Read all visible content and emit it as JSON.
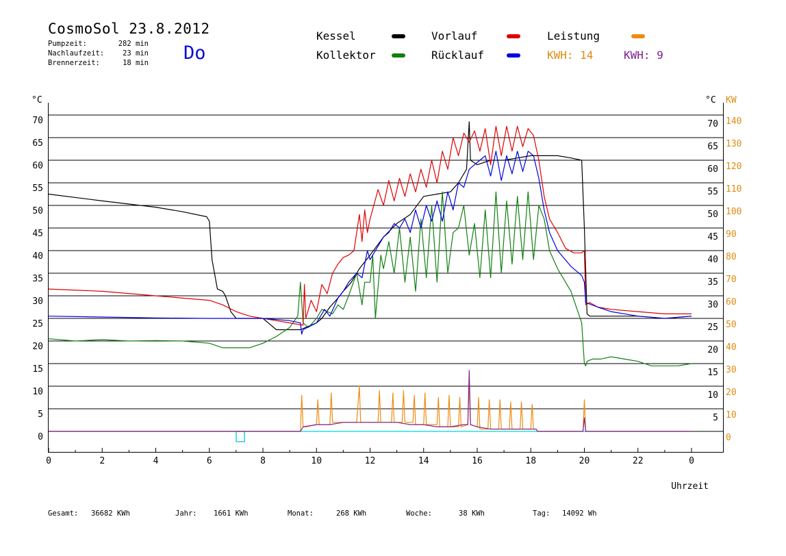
{
  "header": {
    "title": "CosmoSol 23.8.2012",
    "weekday": "Do",
    "stats": [
      {
        "label": "Pumpzeit:",
        "value": "282 min"
      },
      {
        "label": "Nachlaufzeit:",
        "value": "23 min"
      },
      {
        "label": "Brennerzeit:",
        "value": "18 min"
      }
    ]
  },
  "legend": {
    "kessel": {
      "label": "Kessel",
      "color": "#000000"
    },
    "vorlauf": {
      "label": "Vorlauf",
      "color": "#e00000"
    },
    "leistung": {
      "label": "Leistung",
      "color": "#f08a10"
    },
    "kollektor": {
      "label": "Kollektor",
      "color": "#108010"
    },
    "ruecklauf": {
      "label": "Rücklauf",
      "color": "#0000e0"
    },
    "kwh1": {
      "label": "KWH: 14",
      "color": "#e08a10"
    },
    "kwh2": {
      "label": "KWH: 9",
      "color": "#80208a"
    }
  },
  "footer": [
    {
      "label": "Gesamt:",
      "value": "36682 KWh"
    },
    {
      "label": "Jahr:",
      "value": "1661 KWh"
    },
    {
      "label": "Monat:",
      "value": "268 KWh"
    },
    {
      "label": "Woche:",
      "value": "38 KWh"
    },
    {
      "label": "Tag:",
      "value": "14092 Wh"
    }
  ],
  "chart_data": {
    "type": "line",
    "xlabel": "Uhrzeit",
    "left_unit": "°C",
    "right_units": [
      "°C",
      "KW"
    ],
    "x_range": [
      0,
      24
    ],
    "x_ticks": [
      "0",
      "2",
      "4",
      "6",
      "8",
      "10",
      "12",
      "14",
      "16",
      "18",
      "20",
      "22",
      "0"
    ],
    "y_range": [
      0,
      70
    ],
    "y_ticks_left": [
      "70",
      "65",
      "60",
      "55",
      "50",
      "45",
      "40",
      "35",
      "30",
      "25",
      "20",
      "15",
      "10",
      "5",
      "0"
    ],
    "y_ticks_right_temp": [
      "70",
      "65",
      "60",
      "55",
      "50",
      "45",
      "40",
      "35",
      "30",
      "25",
      "20",
      "15",
      "10",
      "5"
    ],
    "y_ticks_right_kw": [
      "140",
      "130",
      "120",
      "110",
      "100",
      "90",
      "80",
      "70",
      "60",
      "50",
      "40",
      "30",
      "20",
      "10",
      "0"
    ],
    "grid": true,
    "series": [
      {
        "name": "Kessel",
        "color": "#000000",
        "x": [
          0,
          2,
          4,
          5,
          5.9,
          6.0,
          6.1,
          6.3,
          6.5,
          6.6,
          6.8,
          7.0,
          7.5,
          8.0,
          8.2,
          8.5,
          9.0,
          9.4,
          9.6,
          10.0,
          10.2,
          10.5,
          10.8,
          11.0,
          11.3,
          11.6,
          12.0,
          12.5,
          13.0,
          13.5,
          14.0,
          14.5,
          15.0,
          15.3,
          15.6,
          15.7,
          15.75,
          16.0,
          16.5,
          17.0,
          17.5,
          18.0,
          18.2,
          18.5,
          19.0,
          19.5,
          19.9,
          20.0,
          20.1,
          20.2,
          20.5,
          21.0,
          22.0,
          23.0,
          24.0
        ],
        "y": [
          52.5,
          51.0,
          49.6,
          48.6,
          47.5,
          46.5,
          38,
          31.5,
          31.0,
          30.0,
          26.5,
          25.0,
          25.0,
          25.0,
          24.0,
          22.5,
          22.5,
          22.5,
          23.0,
          24.0,
          25.0,
          27.5,
          29.5,
          31.0,
          33.0,
          36.0,
          39.0,
          43.0,
          46.0,
          48.0,
          52.0,
          52.5,
          53.0,
          55.0,
          58.0,
          68.5,
          60.0,
          59.0,
          60.0,
          60.0,
          60.5,
          61.0,
          61.0,
          61.0,
          61.0,
          60.5,
          60.0,
          45.0,
          26.0,
          25.5,
          25.5,
          25.5,
          25.5,
          25.0,
          25.5
        ]
      },
      {
        "name": "Vorlauf",
        "color": "#e00000",
        "x": [
          0,
          2,
          4,
          6,
          6.5,
          7.0,
          7.5,
          8.0,
          8.5,
          9.0,
          9.5,
          9.55,
          9.6,
          9.8,
          10.0,
          10.2,
          10.4,
          10.6,
          10.8,
          11.0,
          11.2,
          11.4,
          11.6,
          11.7,
          11.8,
          11.9,
          12.0,
          12.3,
          12.5,
          12.7,
          12.9,
          13.1,
          13.3,
          13.5,
          13.7,
          13.9,
          14.1,
          14.3,
          14.5,
          14.7,
          14.9,
          15.1,
          15.3,
          15.5,
          15.7,
          15.9,
          16.1,
          16.3,
          16.5,
          16.7,
          16.9,
          17.1,
          17.3,
          17.5,
          17.7,
          17.9,
          18.1,
          18.3,
          18.5,
          18.7,
          19.0,
          19.3,
          19.6,
          19.9,
          20.0,
          20.05,
          20.2,
          20.5,
          21.0,
          22.0,
          23.0,
          24.0
        ],
        "y": [
          31.5,
          31.0,
          30.0,
          29.0,
          28.0,
          26.5,
          25.5,
          25.0,
          24.5,
          24.0,
          23.5,
          32.5,
          25.0,
          29.0,
          26.5,
          32.5,
          30.5,
          35.0,
          37.0,
          38.5,
          39.0,
          40.0,
          48.0,
          42.0,
          49.0,
          44.0,
          47.0,
          53.5,
          50.0,
          55.5,
          51.0,
          56.0,
          52.0,
          57.0,
          53.0,
          58.0,
          54.0,
          60.0,
          55.0,
          62.0,
          58.0,
          65.0,
          61.0,
          66.0,
          64.0,
          66.5,
          62.0,
          67.0,
          59.0,
          67.5,
          61.0,
          67.5,
          62.0,
          67.5,
          63.0,
          67.0,
          65.5,
          60.0,
          52.0,
          47.0,
          44.0,
          40.5,
          39.5,
          39.5,
          40.0,
          28.0,
          28.5,
          27.5,
          27.0,
          26.5,
          26.0,
          26.0
        ]
      },
      {
        "name": "Rücklauf",
        "color": "#0000e0",
        "x": [
          0,
          2,
          4,
          6,
          8,
          9.0,
          9.4,
          9.45,
          9.5,
          10.0,
          10.3,
          10.5,
          10.8,
          11.0,
          11.2,
          11.5,
          11.7,
          11.9,
          12.0,
          12.3,
          12.5,
          12.7,
          12.9,
          13.1,
          13.3,
          13.5,
          13.7,
          13.9,
          14.1,
          14.3,
          14.5,
          14.7,
          14.9,
          15.1,
          15.3,
          15.5,
          15.7,
          15.9,
          16.1,
          16.3,
          16.5,
          16.7,
          16.9,
          17.1,
          17.3,
          17.5,
          17.7,
          17.9,
          18.1,
          18.3,
          18.5,
          18.7,
          19.0,
          19.5,
          19.9,
          20.0,
          20.05,
          20.5,
          21.0,
          22.0,
          23.0,
          24.0
        ],
        "y": [
          25.5,
          25.3,
          25.1,
          25.0,
          25.0,
          24.5,
          24.0,
          21.5,
          22.5,
          24.0,
          27.0,
          25.5,
          29.5,
          31.0,
          33.0,
          35.0,
          34.0,
          40.0,
          38.0,
          41.0,
          43.0,
          44.0,
          46.0,
          45.0,
          47.0,
          44.0,
          49.0,
          45.0,
          50.0,
          46.5,
          51.0,
          46.5,
          53.0,
          49.0,
          55.0,
          54.0,
          58.0,
          59.0,
          60.0,
          61.0,
          56.5,
          62.0,
          55.5,
          61.0,
          57.0,
          62.0,
          57.5,
          62.0,
          61.0,
          56.0,
          49.0,
          44.0,
          40.0,
          36.5,
          34.5,
          33.0,
          28.5,
          27.5,
          26.5,
          25.5,
          25.0,
          25.5
        ]
      },
      {
        "name": "Kollektor",
        "color": "#108010",
        "x": [
          0,
          1,
          2,
          3,
          4,
          5,
          6,
          6.5,
          7,
          7.5,
          8,
          8.5,
          9,
          9.3,
          9.4,
          9.5,
          9.7,
          10.0,
          10.2,
          10.4,
          10.6,
          10.8,
          11.0,
          11.2,
          11.5,
          11.7,
          11.8,
          12.0,
          12.1,
          12.2,
          12.4,
          12.5,
          12.7,
          12.9,
          13.1,
          13.3,
          13.5,
          13.7,
          13.9,
          14.1,
          14.3,
          14.5,
          14.7,
          14.9,
          15.1,
          15.3,
          15.5,
          15.7,
          15.9,
          16.1,
          16.3,
          16.5,
          16.7,
          16.9,
          17.1,
          17.3,
          17.5,
          17.7,
          17.9,
          18.1,
          18.3,
          18.5,
          18.7,
          19.0,
          19.5,
          19.9,
          20.0,
          20.05,
          20.1,
          20.3,
          20.6,
          21.0,
          21.5,
          22.0,
          22.5,
          23.0,
          23.5,
          24.0
        ],
        "y": [
          20.5,
          20.0,
          20.3,
          20.0,
          20.1,
          20.0,
          19.5,
          18.5,
          18.5,
          18.5,
          19.5,
          21.0,
          23.0,
          25.5,
          33.0,
          24.0,
          23.0,
          25.0,
          27.0,
          26.5,
          26.0,
          28.0,
          27.0,
          30.0,
          35.0,
          28.0,
          33.0,
          33.0,
          39.0,
          25.0,
          39.0,
          36.0,
          42.0,
          35.0,
          45.0,
          33.0,
          43.0,
          31.0,
          47.0,
          34.0,
          50.0,
          33.0,
          53.0,
          35.0,
          44.0,
          45.0,
          50.0,
          39.0,
          46.0,
          34.0,
          49.0,
          34.0,
          53.0,
          35.0,
          51.0,
          37.0,
          52.0,
          38.0,
          53.0,
          38.0,
          50.0,
          47.0,
          40.0,
          36.0,
          31.0,
          24.0,
          15.0,
          14.5,
          15.5,
          16.0,
          16.0,
          16.5,
          16.0,
          15.5,
          14.5,
          14.5,
          14.5,
          15.0
        ]
      },
      {
        "name": "Leistung",
        "color": "#f08a10",
        "axis": "kw",
        "x": [
          0,
          9.4,
          9.45,
          9.5,
          9.6,
          10.0,
          10.05,
          10.1,
          10.5,
          10.55,
          10.6,
          11.0,
          11.5,
          11.6,
          11.65,
          11.7,
          12.0,
          12.3,
          12.35,
          12.4,
          12.8,
          12.85,
          12.9,
          13.2,
          13.25,
          13.3,
          13.6,
          13.65,
          13.7,
          14.0,
          14.05,
          14.1,
          14.5,
          14.55,
          14.6,
          14.9,
          14.95,
          15.0,
          15.3,
          15.35,
          15.4,
          15.65,
          15.7,
          15.75,
          16.0,
          16.05,
          16.1,
          16.4,
          16.45,
          16.5,
          16.8,
          16.85,
          16.9,
          17.2,
          17.25,
          17.3,
          17.6,
          17.65,
          17.7,
          18.0,
          18.05,
          18.1,
          18.2,
          18.25,
          19.95,
          20.0,
          20.05,
          24.0
        ],
        "y": [
          0,
          0,
          8.0,
          1.0,
          1.0,
          1.5,
          7.0,
          1.5,
          1.5,
          8.5,
          2.0,
          2.0,
          2.0,
          10.0,
          2.0,
          2.0,
          2.0,
          2.0,
          9.0,
          2.0,
          2.0,
          8.5,
          2.0,
          2.0,
          9.0,
          2.0,
          2.0,
          8.0,
          1.5,
          1.5,
          8.5,
          1.5,
          1.5,
          7.5,
          1.0,
          1.0,
          8.0,
          1.0,
          1.0,
          7.5,
          1.0,
          1.5,
          11.0,
          1.5,
          1.0,
          7.5,
          0.5,
          0.5,
          7.0,
          0.5,
          0.5,
          7.0,
          0.5,
          0.5,
          6.5,
          0.5,
          0.5,
          6.5,
          0.5,
          0.5,
          6.0,
          0.5,
          0.5,
          0,
          0,
          7.0,
          0,
          0
        ]
      },
      {
        "name": "KWH 9",
        "color": "#80208a",
        "axis": "kw",
        "x": [
          0,
          9.4,
          9.5,
          10.0,
          10.5,
          11.0,
          11.5,
          11.7,
          12.0,
          12.5,
          13.0,
          13.5,
          14.0,
          14.5,
          15.0,
          15.5,
          15.65,
          15.7,
          15.75,
          16.0,
          16.5,
          17.0,
          17.5,
          18.0,
          18.2,
          18.25,
          19.95,
          20.0,
          20.05,
          24.0
        ],
        "y": [
          0,
          0,
          1.0,
          1.5,
          1.5,
          2.0,
          2.0,
          2.0,
          2.0,
          2.0,
          2.0,
          1.5,
          1.5,
          1.0,
          1.0,
          1.5,
          1.5,
          13.5,
          1.5,
          1.0,
          0.5,
          0.5,
          0.5,
          0.5,
          0.5,
          0,
          0,
          3.0,
          0,
          0
        ]
      }
    ]
  }
}
